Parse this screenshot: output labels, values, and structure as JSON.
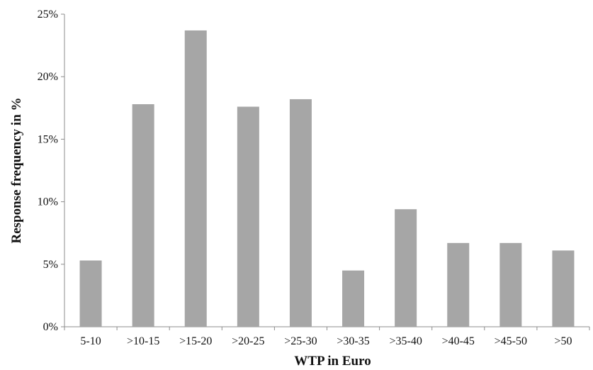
{
  "chart_data": {
    "type": "bar",
    "title": "",
    "xlabel": "WTP in Euro",
    "ylabel": "Response frequency in %",
    "categories": [
      ">5-10",
      ">10-15",
      ">15-20",
      ">20-25",
      ">25-30",
      ">30-35",
      ">35-40",
      ">40-45",
      ">45-50",
      ">50"
    ],
    "category_labels": [
      "5-10",
      ">10-15",
      ">15-20",
      ">20-25",
      ">25-30",
      ">30-35",
      ">35-40",
      ">40-45",
      ">45-50",
      ">50"
    ],
    "values": [
      5.3,
      17.8,
      23.7,
      17.6,
      18.2,
      4.5,
      9.4,
      6.7,
      6.7,
      6.1
    ],
    "ylim": [
      0,
      25
    ],
    "yticks": [
      0,
      5,
      10,
      15,
      20,
      25
    ],
    "ytick_labels": [
      "0%",
      "5%",
      "10%",
      "15%",
      "20%",
      "25%"
    ],
    "grid": false,
    "legend": "none",
    "bar_color": "#a6a6a6"
  }
}
